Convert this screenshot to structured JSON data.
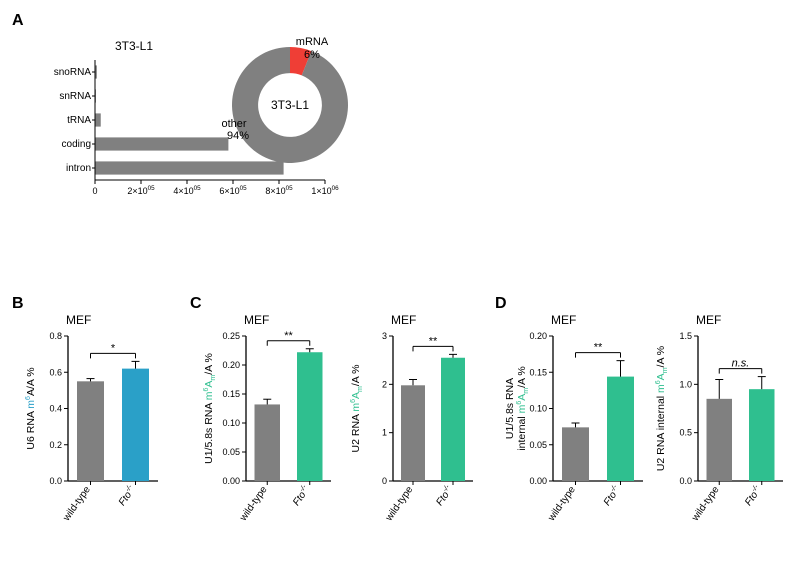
{
  "panel_letters": {
    "A": "A",
    "B": "B",
    "C": "C",
    "D": "D"
  },
  "panelA": {
    "bar": {
      "type": "bar",
      "title": "3T3-L1",
      "title_fontsize": 12,
      "categories": [
        "snoRNA",
        "snRNA",
        "tRNA",
        "coding",
        "intron"
      ],
      "values": [
        8000,
        4000,
        25000,
        580000,
        820000
      ],
      "xlim": [
        0,
        1000000
      ],
      "xticks_labels": [
        "0",
        "2×10",
        "4×10",
        "6×10",
        "8×10",
        "1×10"
      ],
      "xticks_exp": [
        "",
        "05",
        "05",
        "05",
        "05",
        "06"
      ],
      "bar_color": "#808080",
      "axis_color": "#000000",
      "tick_fontsize": 9,
      "cat_fontsize": 10
    },
    "donut": {
      "type": "pie",
      "center_label": "3T3-L1",
      "slices": [
        {
          "label": "mRNA",
          "sub": "6%",
          "value": 6,
          "color": "#ef3e36"
        },
        {
          "label": "other",
          "sub": "94%",
          "value": 94,
          "color": "#808080"
        }
      ],
      "inner_radius": 0.55,
      "label_fontsize": 11
    }
  },
  "panelB": {
    "title": "MEF",
    "type": "bar",
    "ylabel_pre": "U6 RNA ",
    "ylabel_span": "m",
    "ylabel_sup": "6",
    "ylabel_post": "A/A %",
    "ylabel_color": "#2aa0c8",
    "categories": [
      "wild-type",
      "Fto"
    ],
    "cat_italic_sup": [
      "",
      "-/-"
    ],
    "values": [
      0.55,
      0.62
    ],
    "errors": [
      0.015,
      0.04
    ],
    "ylim": [
      0,
      0.8
    ],
    "ytick_step": 0.2,
    "yticks": [
      "0.0",
      "0.2",
      "0.4",
      "0.6",
      "0.8"
    ],
    "bar_colors": [
      "#808080",
      "#2aa0c8"
    ],
    "sig": "*",
    "sig_label": "*"
  },
  "panelC": {
    "title": "MEF",
    "left": {
      "type": "bar",
      "ylabel_pre": "U1/5.8s RNA ",
      "ylabel_span": "m",
      "ylabel_sup": "6",
      "ylabel_mid": "A",
      "ylabel_sub": "m",
      "ylabel_post": "/A %",
      "ylabel_color": "#2fbf8f",
      "categories": [
        "wild-type",
        "Fto"
      ],
      "cat_italic_sup": [
        "",
        "-/-"
      ],
      "values": [
        0.132,
        0.222
      ],
      "errors": [
        0.009,
        0.006
      ],
      "ylim": [
        0,
        0.25
      ],
      "yticks": [
        "0.00",
        "0.05",
        "0.10",
        "0.15",
        "0.20",
        "0.25"
      ],
      "bar_colors": [
        "#808080",
        "#2fbf8f"
      ],
      "sig": "**"
    },
    "right": {
      "type": "bar",
      "ylabel_pre": "U2 RNA ",
      "ylabel_span": "m",
      "ylabel_sup": "6",
      "ylabel_mid": "A",
      "ylabel_sub": "m",
      "ylabel_post": "/A %",
      "ylabel_color": "#2fbf8f",
      "categories": [
        "wild-type",
        "Fto"
      ],
      "cat_italic_sup": [
        "",
        "-/-"
      ],
      "values": [
        1.98,
        2.55
      ],
      "errors": [
        0.12,
        0.07
      ],
      "ylim": [
        0,
        3.0
      ],
      "yticks": [
        "0",
        "1",
        "2",
        "3"
      ],
      "bar_colors": [
        "#808080",
        "#2fbf8f"
      ],
      "sig": "**"
    }
  },
  "panelD": {
    "title": "MEF",
    "left": {
      "type": "bar",
      "ylabel_line1_pre": "U1/5.8s RNA",
      "ylabel_line2_pre": "internal ",
      "ylabel_span": "m",
      "ylabel_sup": "6",
      "ylabel_mid": "A",
      "ylabel_sub": "m",
      "ylabel_post": "/A %",
      "ylabel_color": "#2fbf8f",
      "categories": [
        "wild-type",
        "Fto"
      ],
      "cat_italic_sup": [
        "",
        "-/-"
      ],
      "values": [
        0.074,
        0.144
      ],
      "errors": [
        0.006,
        0.022
      ],
      "ylim": [
        0,
        0.2
      ],
      "yticks": [
        "0.00",
        "0.05",
        "0.10",
        "0.15",
        "0.20"
      ],
      "bar_colors": [
        "#808080",
        "#2fbf8f"
      ],
      "sig": "**"
    },
    "right": {
      "type": "bar",
      "ylabel_pre": "U2 RNA internal ",
      "ylabel_span": "m",
      "ylabel_sup": "6",
      "ylabel_mid": "A",
      "ylabel_sub": "m",
      "ylabel_post": "/A %",
      "ylabel_color": "#2fbf8f",
      "categories": [
        "wild-type",
        "Fto"
      ],
      "cat_italic_sup": [
        "",
        "-/-"
      ],
      "values": [
        0.85,
        0.95
      ],
      "errors": [
        0.2,
        0.13
      ],
      "ylim": [
        0,
        1.5
      ],
      "yticks": [
        "0.0",
        "0.5",
        "1.0",
        "1.5"
      ],
      "bar_colors": [
        "#808080",
        "#2fbf8f"
      ],
      "sig": "n.s.",
      "sig_italic": true
    }
  }
}
